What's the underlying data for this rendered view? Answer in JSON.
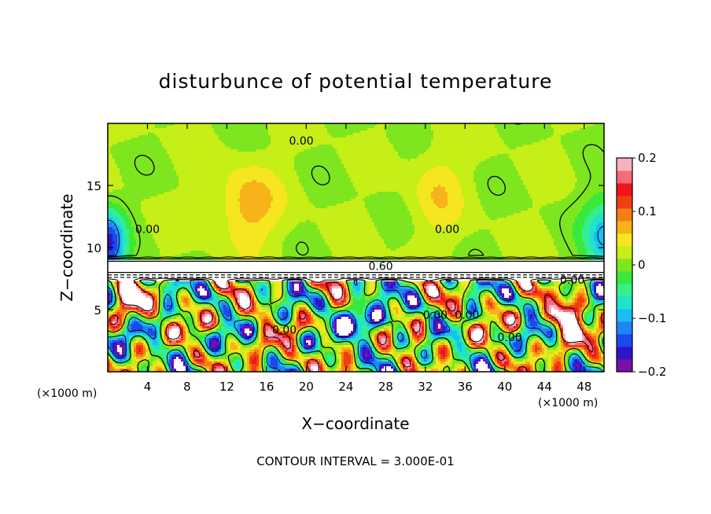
{
  "chart_data": {
    "type": "heatmap",
    "title": "disturbunce of potential temperature",
    "xlabel": "X−coordinate",
    "ylabel": "Z−coordinate",
    "x_unit_left": "(×1000 m)",
    "x_unit_right": "(×1000 m)",
    "xlim": [
      0,
      50
    ],
    "ylim": [
      0,
      20
    ],
    "x_ticks": [
      4,
      8,
      12,
      16,
      20,
      24,
      28,
      32,
      36,
      40,
      44,
      48
    ],
    "x_tick_labels": [
      "4",
      "8",
      "12",
      "16",
      "20",
      "24",
      "28",
      "32",
      "36",
      "40",
      "44",
      "48"
    ],
    "y_ticks": [
      5,
      10,
      15
    ],
    "y_tick_labels": [
      "5",
      "10",
      "15"
    ],
    "colorbar": {
      "range": [
        -0.2,
        0.2
      ],
      "ticks": [
        0.2,
        0.1,
        0,
        -0.1,
        -0.2
      ],
      "tick_labels": [
        "0.2",
        "0.1",
        "0",
        "−0.1",
        "−0.2"
      ],
      "colors": [
        "#7a0fa8",
        "#2e14c8",
        "#1b49f0",
        "#1f86f5",
        "#18bff0",
        "#20e3cc",
        "#35ef8f",
        "#39e83a",
        "#7ee61f",
        "#c6ee17",
        "#f5e61f",
        "#f6b31a",
        "#f57d14",
        "#f23f10",
        "#f2141c",
        "#f56b7d",
        "#f7b3bd"
      ]
    },
    "contour_interval_text": "CONTOUR INTERVAL = 3.000E-01",
    "contour_labels": [
      {
        "text": "0.00",
        "x": 19.5,
        "z": 18.6
      },
      {
        "text": "0.00",
        "x": 4.0,
        "z": 11.5
      },
      {
        "text": "0.00",
        "x": 34.2,
        "z": 11.5
      },
      {
        "text": "0.60",
        "x": 27.5,
        "z": 8.5
      },
      {
        "text": "0.00",
        "x": 46.8,
        "z": 7.4
      },
      {
        "text": "0.00",
        "x": 17.8,
        "z": 3.4
      },
      {
        "text": "0.00",
        "x": 33.0,
        "z": 4.6
      },
      {
        "text": "0.00",
        "x": 36.2,
        "z": 4.6
      },
      {
        "text": "0.00",
        "x": 40.5,
        "z": 2.8
      }
    ]
  }
}
